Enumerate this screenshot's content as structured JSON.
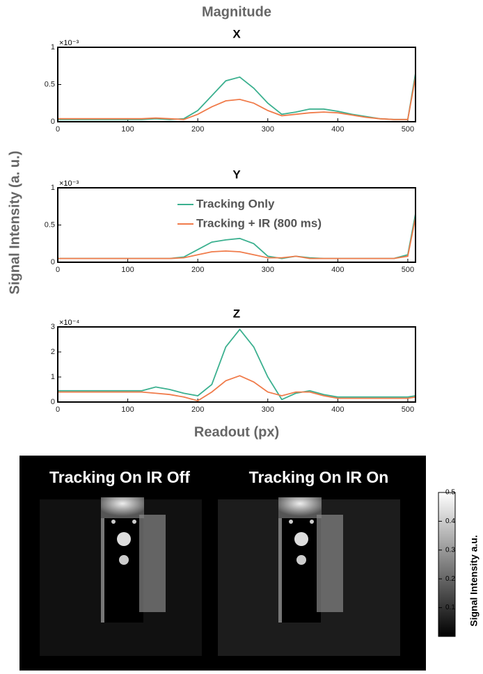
{
  "figure": {
    "title": "Magnitude",
    "ylabel": "Signal Intensity (a. u.)",
    "xlabel": "Readout (px)"
  },
  "chart_data": [
    {
      "type": "line",
      "title": "X",
      "y_multiplier": "×10⁻³",
      "x": [
        0,
        20,
        40,
        60,
        80,
        100,
        120,
        140,
        160,
        180,
        200,
        220,
        240,
        260,
        280,
        300,
        320,
        340,
        360,
        380,
        400,
        420,
        440,
        460,
        480,
        500,
        511
      ],
      "series": [
        {
          "color": "#3bb08f",
          "values": [
            0.03,
            0.03,
            0.03,
            0.03,
            0.03,
            0.03,
            0.03,
            0.04,
            0.03,
            0.04,
            0.15,
            0.35,
            0.55,
            0.6,
            0.45,
            0.25,
            0.1,
            0.13,
            0.17,
            0.17,
            0.14,
            0.1,
            0.07,
            0.04,
            0.03,
            0.03,
            0.65
          ]
        },
        {
          "color": "#f07b4a",
          "values": [
            0.04,
            0.04,
            0.04,
            0.04,
            0.04,
            0.04,
            0.04,
            0.05,
            0.04,
            0.03,
            0.1,
            0.2,
            0.28,
            0.3,
            0.25,
            0.15,
            0.08,
            0.1,
            0.12,
            0.13,
            0.12,
            0.09,
            0.06,
            0.04,
            0.03,
            0.03,
            0.6
          ]
        }
      ],
      "xlim": [
        0,
        511
      ],
      "xticks": [
        0,
        100,
        200,
        300,
        400,
        500
      ],
      "ylim": [
        0,
        1
      ],
      "yticks": [
        0,
        0.5,
        1
      ],
      "legend": false
    },
    {
      "type": "line",
      "title": "Y",
      "y_multiplier": "×10⁻³",
      "x": [
        0,
        20,
        40,
        60,
        80,
        100,
        120,
        140,
        160,
        180,
        200,
        220,
        240,
        260,
        280,
        300,
        320,
        340,
        360,
        380,
        400,
        420,
        440,
        460,
        480,
        500,
        511
      ],
      "series": [
        {
          "name": "Tracking Only",
          "color": "#3bb08f",
          "values": [
            0.05,
            0.05,
            0.05,
            0.05,
            0.05,
            0.05,
            0.05,
            0.05,
            0.05,
            0.07,
            0.17,
            0.27,
            0.3,
            0.32,
            0.25,
            0.08,
            0.05,
            0.08,
            0.06,
            0.05,
            0.05,
            0.05,
            0.05,
            0.05,
            0.05,
            0.1,
            0.65
          ]
        },
        {
          "name": "Tracking + IR (800 ms)",
          "color": "#f07b4a",
          "values": [
            0.05,
            0.05,
            0.05,
            0.05,
            0.05,
            0.05,
            0.05,
            0.05,
            0.05,
            0.06,
            0.1,
            0.14,
            0.15,
            0.14,
            0.1,
            0.06,
            0.06,
            0.08,
            0.05,
            0.05,
            0.05,
            0.05,
            0.05,
            0.05,
            0.05,
            0.08,
            0.6
          ]
        }
      ],
      "xlim": [
        0,
        511
      ],
      "xticks": [
        0,
        100,
        200,
        300,
        400,
        500
      ],
      "ylim": [
        0,
        1
      ],
      "yticks": [
        0,
        0.5,
        1
      ],
      "legend": true
    },
    {
      "type": "line",
      "title": "Z",
      "y_multiplier": "×10⁻⁴",
      "x": [
        0,
        20,
        40,
        60,
        80,
        100,
        120,
        140,
        160,
        180,
        200,
        220,
        240,
        260,
        280,
        300,
        320,
        340,
        360,
        380,
        400,
        420,
        440,
        460,
        480,
        500,
        511
      ],
      "series": [
        {
          "color": "#3bb08f",
          "values": [
            0.45,
            0.45,
            0.45,
            0.45,
            0.45,
            0.45,
            0.45,
            0.6,
            0.5,
            0.35,
            0.25,
            0.7,
            2.2,
            2.9,
            2.2,
            1.0,
            0.1,
            0.35,
            0.45,
            0.3,
            0.2,
            0.2,
            0.2,
            0.2,
            0.2,
            0.2,
            0.25
          ]
        },
        {
          "color": "#f07b4a",
          "values": [
            0.4,
            0.4,
            0.4,
            0.4,
            0.4,
            0.4,
            0.4,
            0.35,
            0.3,
            0.2,
            0.05,
            0.4,
            0.85,
            1.05,
            0.8,
            0.4,
            0.25,
            0.4,
            0.4,
            0.25,
            0.15,
            0.15,
            0.15,
            0.15,
            0.15,
            0.15,
            0.2
          ]
        }
      ],
      "xlim": [
        0,
        511
      ],
      "xticks": [
        0,
        100,
        200,
        300,
        400,
        500
      ],
      "ylim": [
        0,
        3
      ],
      "yticks": [
        0,
        1,
        2,
        3
      ],
      "legend": false
    }
  ],
  "images": {
    "captions": [
      "Tracking On IR Off",
      "Tracking On IR On"
    ]
  },
  "colorbar": {
    "label": "Signal Intensity a.u.",
    "lim": [
      0,
      0.5
    ],
    "ticks": [
      0.1,
      0.2,
      0.3,
      0.4,
      0.5
    ]
  }
}
